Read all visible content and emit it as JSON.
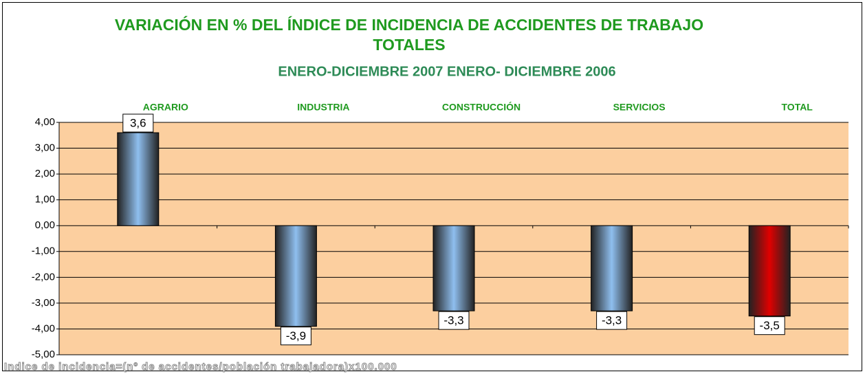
{
  "chart_data": {
    "type": "bar",
    "title": "VARIACIÓN EN % DEL ÍNDICE DE INCIDENCIA DE ACCIDENTES DE TRABAJO TOTALES",
    "subtitle": "ENERO-DICIEMBRE 2007 ENERO- DICIEMBRE 2006",
    "categories": [
      "AGRARIO",
      "INDUSTRIA",
      "CONSTRUCCIÓN",
      "SERVICIOS",
      "TOTAL"
    ],
    "values": [
      3.6,
      -3.9,
      -3.3,
      -3.3,
      -3.5
    ],
    "value_labels": [
      "3,6",
      "-3,9",
      "-3,3",
      "-3,3",
      "-3,5"
    ],
    "colors": [
      "#8fbfef",
      "#8fbfef",
      "#8fbfef",
      "#8fbfef",
      "#e00000"
    ],
    "ylim": [
      -5,
      4
    ],
    "yticks": [
      {
        "value": -5,
        "label": "-5,00"
      },
      {
        "value": -4,
        "label": "-4,00"
      },
      {
        "value": -3,
        "label": "-3,00"
      },
      {
        "value": -2,
        "label": "-2,00"
      },
      {
        "value": -1,
        "label": "-1,00"
      },
      {
        "value": 0,
        "label": "0,00"
      },
      {
        "value": 1,
        "label": "1,00"
      },
      {
        "value": 2,
        "label": "2,00"
      },
      {
        "value": 3,
        "label": "3,00"
      },
      {
        "value": 4,
        "label": "4,00"
      }
    ],
    "grid": true,
    "footnote": "Indice de incidencia=(nº de accidentes/población trabajadora)x100.000"
  }
}
